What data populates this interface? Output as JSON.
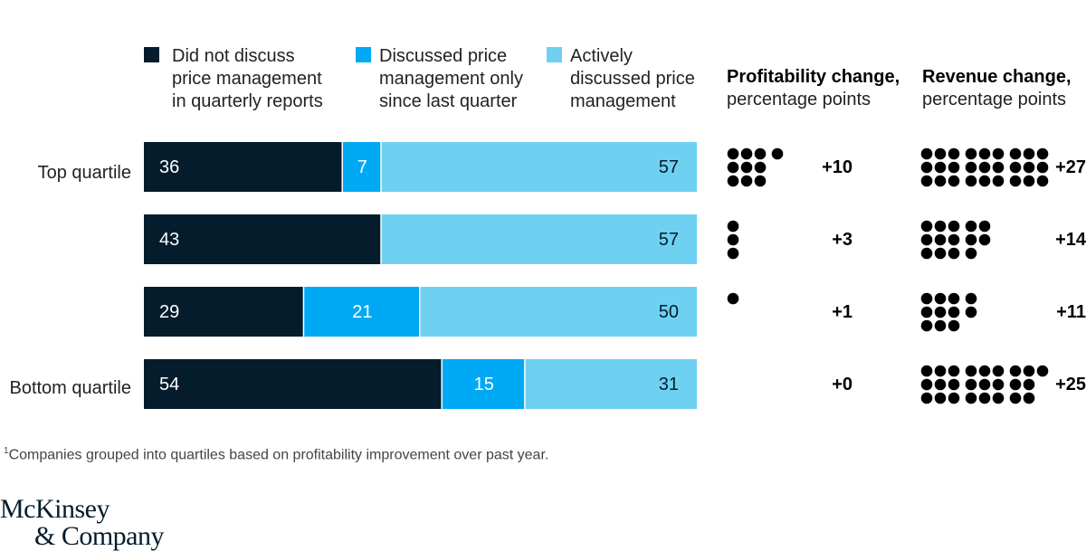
{
  "chart_data": {
    "type": "bar",
    "subtype": "stacked-horizontal-100",
    "categories": [
      "Top quartile",
      "",
      "",
      "Bottom quartile"
    ],
    "series": [
      {
        "name": "Did not discuss price management in quarterly reports",
        "color": "#051c2c",
        "values": [
          36,
          43,
          29,
          54
        ]
      },
      {
        "name": "Discussed price management only since last quarter",
        "color": "#00a9f4",
        "values": [
          7,
          0,
          21,
          15
        ]
      },
      {
        "name": "Actively discussed price management",
        "color": "#6fd1f2",
        "values": [
          57,
          57,
          50,
          31
        ]
      }
    ],
    "xlim": [
      0,
      100
    ],
    "legend_placement": "top",
    "profitability_change": {
      "title": "Profitability change,",
      "subtitle": "percentage points",
      "values": [
        10,
        3,
        1,
        0
      ],
      "labels": [
        "+10",
        "+3",
        "+1",
        "+0"
      ]
    },
    "revenue_change": {
      "title": "Revenue change,",
      "subtitle": "percentage points",
      "values": [
        27,
        14,
        11,
        25
      ],
      "labels": [
        "+27",
        "+14",
        "+11",
        "+25"
      ]
    }
  },
  "legend": [
    {
      "label": "Did not discuss\nprice management\nin quarterly reports",
      "color": "#051c2c"
    },
    {
      "label": "Discussed price\nmanagement only\nsince last quarter",
      "color": "#00a9f4"
    },
    {
      "label": "Actively\ndiscussed price\nmanagement",
      "color": "#6fd1f2"
    }
  ],
  "row_labels": [
    "Top quartile",
    "Bottom quartile"
  ],
  "footnote": {
    "mark": "1",
    "text": "Companies grouped into quartiles based on profitability improvement over past year."
  },
  "logo": {
    "line1": "McKinsey",
    "line2": "& Company"
  }
}
